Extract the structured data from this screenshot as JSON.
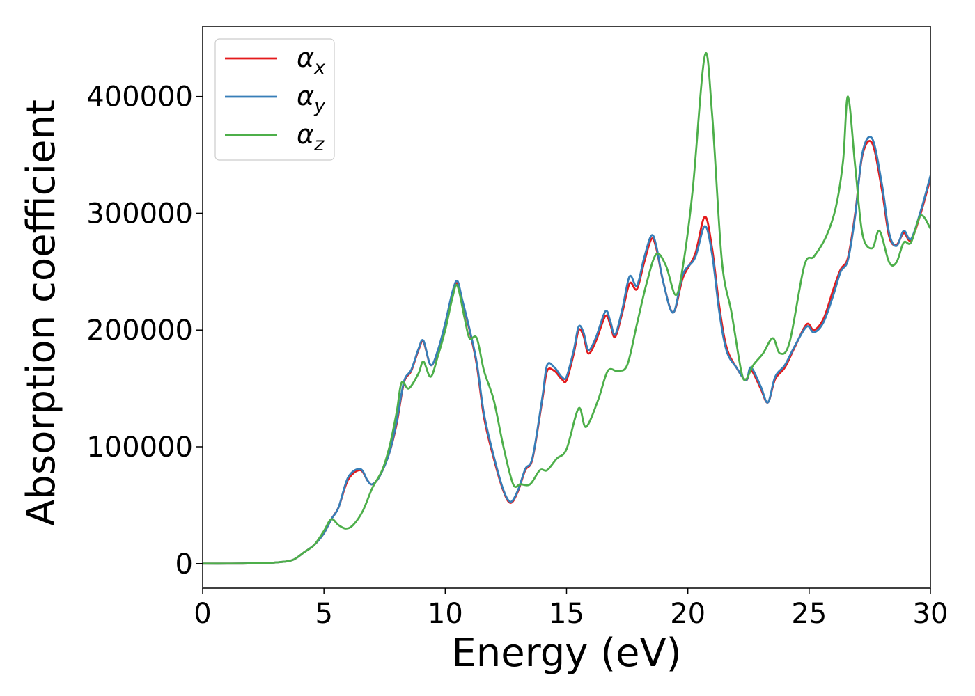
{
  "chart_data": {
    "type": "line",
    "xlabel": "Energy (eV)",
    "ylabel": "Absorption coefficient",
    "xlim": [
      0,
      30
    ],
    "ylim": [
      -21000,
      460000
    ],
    "x_ticks": [
      "0",
      "5",
      "10",
      "15",
      "20",
      "25",
      "30"
    ],
    "y_ticks": [
      "0",
      "100000",
      "200000",
      "300000",
      "400000"
    ],
    "x_tick_values": [
      0,
      5,
      10,
      15,
      20,
      25,
      30
    ],
    "y_tick_values": [
      0,
      100000,
      200000,
      300000,
      400000
    ],
    "grid": false,
    "legend_position": "top-left",
    "series": [
      {
        "name": "αx",
        "name_base": "α",
        "name_sub": "x",
        "color": "#e41a1c",
        "points": [
          [
            0,
            0
          ],
          [
            1,
            0
          ],
          [
            2,
            200
          ],
          [
            3,
            1000
          ],
          [
            3.7,
            3000
          ],
          [
            4.2,
            10000
          ],
          [
            4.6,
            16000
          ],
          [
            5,
            26000
          ],
          [
            5.3,
            38000
          ],
          [
            5.6,
            48000
          ],
          [
            6,
            72000
          ],
          [
            6.5,
            80000
          ],
          [
            6.8,
            71000
          ],
          [
            7,
            68000
          ],
          [
            7.3,
            75000
          ],
          [
            7.7,
            95000
          ],
          [
            8,
            120000
          ],
          [
            8.3,
            155000
          ],
          [
            8.6,
            165000
          ],
          [
            8.9,
            183000
          ],
          [
            9.1,
            190000
          ],
          [
            9.4,
            170000
          ],
          [
            9.7,
            182000
          ],
          [
            10,
            205000
          ],
          [
            10.3,
            232000
          ],
          [
            10.5,
            240000
          ],
          [
            10.7,
            225000
          ],
          [
            11,
            200000
          ],
          [
            11.3,
            170000
          ],
          [
            11.6,
            125000
          ],
          [
            12,
            90000
          ],
          [
            12.4,
            62000
          ],
          [
            12.7,
            52000
          ],
          [
            13,
            62000
          ],
          [
            13.3,
            80000
          ],
          [
            13.6,
            90000
          ],
          [
            14,
            140000
          ],
          [
            14.2,
            165000
          ],
          [
            14.5,
            165000
          ],
          [
            14.8,
            158000
          ],
          [
            15,
            157000
          ],
          [
            15.3,
            180000
          ],
          [
            15.5,
            200000
          ],
          [
            15.7,
            195000
          ],
          [
            15.9,
            180000
          ],
          [
            16.2,
            190000
          ],
          [
            16.6,
            212000
          ],
          [
            16.8,
            205000
          ],
          [
            17,
            194000
          ],
          [
            17.3,
            215000
          ],
          [
            17.6,
            240000
          ],
          [
            17.9,
            235000
          ],
          [
            18.2,
            258000
          ],
          [
            18.5,
            278000
          ],
          [
            18.7,
            270000
          ],
          [
            19,
            240000
          ],
          [
            19.4,
            215000
          ],
          [
            19.8,
            245000
          ],
          [
            20.3,
            265000
          ],
          [
            20.7,
            297000
          ],
          [
            21,
            270000
          ],
          [
            21.3,
            220000
          ],
          [
            21.6,
            185000
          ],
          [
            22,
            168000
          ],
          [
            22.4,
            157000
          ],
          [
            22.6,
            166000
          ],
          [
            23,
            150000
          ],
          [
            23.3,
            138000
          ],
          [
            23.6,
            158000
          ],
          [
            24,
            168000
          ],
          [
            24.4,
            185000
          ],
          [
            24.9,
            205000
          ],
          [
            25.2,
            200000
          ],
          [
            25.6,
            210000
          ],
          [
            26,
            235000
          ],
          [
            26.3,
            252000
          ],
          [
            26.6,
            262000
          ],
          [
            26.9,
            300000
          ],
          [
            27.2,
            350000
          ],
          [
            27.6,
            360000
          ],
          [
            28,
            320000
          ],
          [
            28.3,
            280000
          ],
          [
            28.6,
            273000
          ],
          [
            28.9,
            283000
          ],
          [
            29.2,
            277000
          ],
          [
            29.6,
            300000
          ],
          [
            30,
            330000
          ]
        ]
      },
      {
        "name": "αy",
        "name_base": "α",
        "name_sub": "y",
        "color": "#377eb8",
        "points": [
          [
            0,
            0
          ],
          [
            1,
            0
          ],
          [
            2,
            200
          ],
          [
            3,
            1000
          ],
          [
            3.7,
            3000
          ],
          [
            4.2,
            10000
          ],
          [
            4.6,
            16000
          ],
          [
            5,
            26000
          ],
          [
            5.3,
            38000
          ],
          [
            5.6,
            48000
          ],
          [
            6,
            74000
          ],
          [
            6.5,
            81000
          ],
          [
            6.8,
            71000
          ],
          [
            7,
            68000
          ],
          [
            7.3,
            75000
          ],
          [
            7.7,
            95000
          ],
          [
            8,
            122000
          ],
          [
            8.3,
            156000
          ],
          [
            8.6,
            166000
          ],
          [
            8.9,
            184000
          ],
          [
            9.1,
            191000
          ],
          [
            9.4,
            170000
          ],
          [
            9.7,
            183000
          ],
          [
            10,
            206000
          ],
          [
            10.3,
            233000
          ],
          [
            10.5,
            242000
          ],
          [
            10.7,
            226000
          ],
          [
            11,
            201000
          ],
          [
            11.3,
            172000
          ],
          [
            11.6,
            128000
          ],
          [
            12,
            92000
          ],
          [
            12.4,
            63000
          ],
          [
            12.7,
            53000
          ],
          [
            13,
            63000
          ],
          [
            13.3,
            81000
          ],
          [
            13.6,
            91000
          ],
          [
            14,
            142000
          ],
          [
            14.2,
            170000
          ],
          [
            14.5,
            168000
          ],
          [
            14.8,
            160000
          ],
          [
            15,
            160000
          ],
          [
            15.3,
            183000
          ],
          [
            15.5,
            203000
          ],
          [
            15.7,
            198000
          ],
          [
            15.9,
            183000
          ],
          [
            16.2,
            193000
          ],
          [
            16.6,
            216000
          ],
          [
            16.8,
            208000
          ],
          [
            17,
            196000
          ],
          [
            17.3,
            218000
          ],
          [
            17.6,
            246000
          ],
          [
            17.9,
            238000
          ],
          [
            18.2,
            262000
          ],
          [
            18.5,
            281000
          ],
          [
            18.7,
            272000
          ],
          [
            19,
            240000
          ],
          [
            19.4,
            215000
          ],
          [
            19.8,
            248000
          ],
          [
            20.3,
            262000
          ],
          [
            20.7,
            289000
          ],
          [
            21,
            265000
          ],
          [
            21.3,
            215000
          ],
          [
            21.6,
            182000
          ],
          [
            22,
            168000
          ],
          [
            22.4,
            157000
          ],
          [
            22.6,
            168000
          ],
          [
            23,
            152000
          ],
          [
            23.3,
            138000
          ],
          [
            23.6,
            160000
          ],
          [
            24,
            170000
          ],
          [
            24.4,
            186000
          ],
          [
            24.9,
            203000
          ],
          [
            25.2,
            198000
          ],
          [
            25.6,
            207000
          ],
          [
            26,
            230000
          ],
          [
            26.3,
            250000
          ],
          [
            26.6,
            260000
          ],
          [
            26.9,
            298000
          ],
          [
            27.2,
            352000
          ],
          [
            27.6,
            364000
          ],
          [
            28,
            325000
          ],
          [
            28.3,
            283000
          ],
          [
            28.6,
            272000
          ],
          [
            28.9,
            285000
          ],
          [
            29.2,
            278000
          ],
          [
            29.6,
            302000
          ],
          [
            30,
            332000
          ]
        ]
      },
      {
        "name": "αz",
        "name_base": "α",
        "name_sub": "z",
        "color": "#4daf4a",
        "points": [
          [
            0,
            0
          ],
          [
            1,
            0
          ],
          [
            2,
            200
          ],
          [
            3,
            1000
          ],
          [
            3.7,
            3000
          ],
          [
            4.2,
            10000
          ],
          [
            4.6,
            16000
          ],
          [
            5,
            28000
          ],
          [
            5.3,
            38000
          ],
          [
            5.6,
            33000
          ],
          [
            5.9,
            30000
          ],
          [
            6.2,
            33000
          ],
          [
            6.6,
            45000
          ],
          [
            7,
            65000
          ],
          [
            7.4,
            80000
          ],
          [
            7.7,
            100000
          ],
          [
            8,
            130000
          ],
          [
            8.2,
            155000
          ],
          [
            8.5,
            150000
          ],
          [
            8.9,
            163000
          ],
          [
            9.1,
            173000
          ],
          [
            9.4,
            160000
          ],
          [
            9.7,
            178000
          ],
          [
            10,
            200000
          ],
          [
            10.3,
            228000
          ],
          [
            10.5,
            238000
          ],
          [
            10.8,
            210000
          ],
          [
            11,
            193000
          ],
          [
            11.3,
            193000
          ],
          [
            11.6,
            165000
          ],
          [
            12,
            140000
          ],
          [
            12.4,
            100000
          ],
          [
            12.8,
            68000
          ],
          [
            13.1,
            68000
          ],
          [
            13.5,
            68000
          ],
          [
            13.9,
            80000
          ],
          [
            14.2,
            80000
          ],
          [
            14.6,
            90000
          ],
          [
            15,
            98000
          ],
          [
            15.5,
            133000
          ],
          [
            15.8,
            117000
          ],
          [
            16.3,
            140000
          ],
          [
            16.7,
            165000
          ],
          [
            17.1,
            165000
          ],
          [
            17.5,
            170000
          ],
          [
            17.9,
            205000
          ],
          [
            18.3,
            240000
          ],
          [
            18.7,
            265000
          ],
          [
            19.1,
            255000
          ],
          [
            19.5,
            230000
          ],
          [
            19.8,
            255000
          ],
          [
            20.2,
            320000
          ],
          [
            20.7,
            435000
          ],
          [
            21,
            385000
          ],
          [
            21.4,
            260000
          ],
          [
            21.8,
            215000
          ],
          [
            22.2,
            165000
          ],
          [
            22.4,
            158000
          ],
          [
            22.7,
            170000
          ],
          [
            23.1,
            180000
          ],
          [
            23.5,
            193000
          ],
          [
            23.8,
            180000
          ],
          [
            24.2,
            190000
          ],
          [
            24.8,
            255000
          ],
          [
            25.2,
            263000
          ],
          [
            25.7,
            280000
          ],
          [
            26.1,
            305000
          ],
          [
            26.4,
            345000
          ],
          [
            26.6,
            400000
          ],
          [
            26.9,
            340000
          ],
          [
            27.2,
            282000
          ],
          [
            27.6,
            270000
          ],
          [
            27.9,
            285000
          ],
          [
            28.3,
            258000
          ],
          [
            28.6,
            258000
          ],
          [
            28.9,
            275000
          ],
          [
            29.2,
            275000
          ],
          [
            29.6,
            298000
          ],
          [
            30,
            287000
          ]
        ]
      }
    ]
  }
}
